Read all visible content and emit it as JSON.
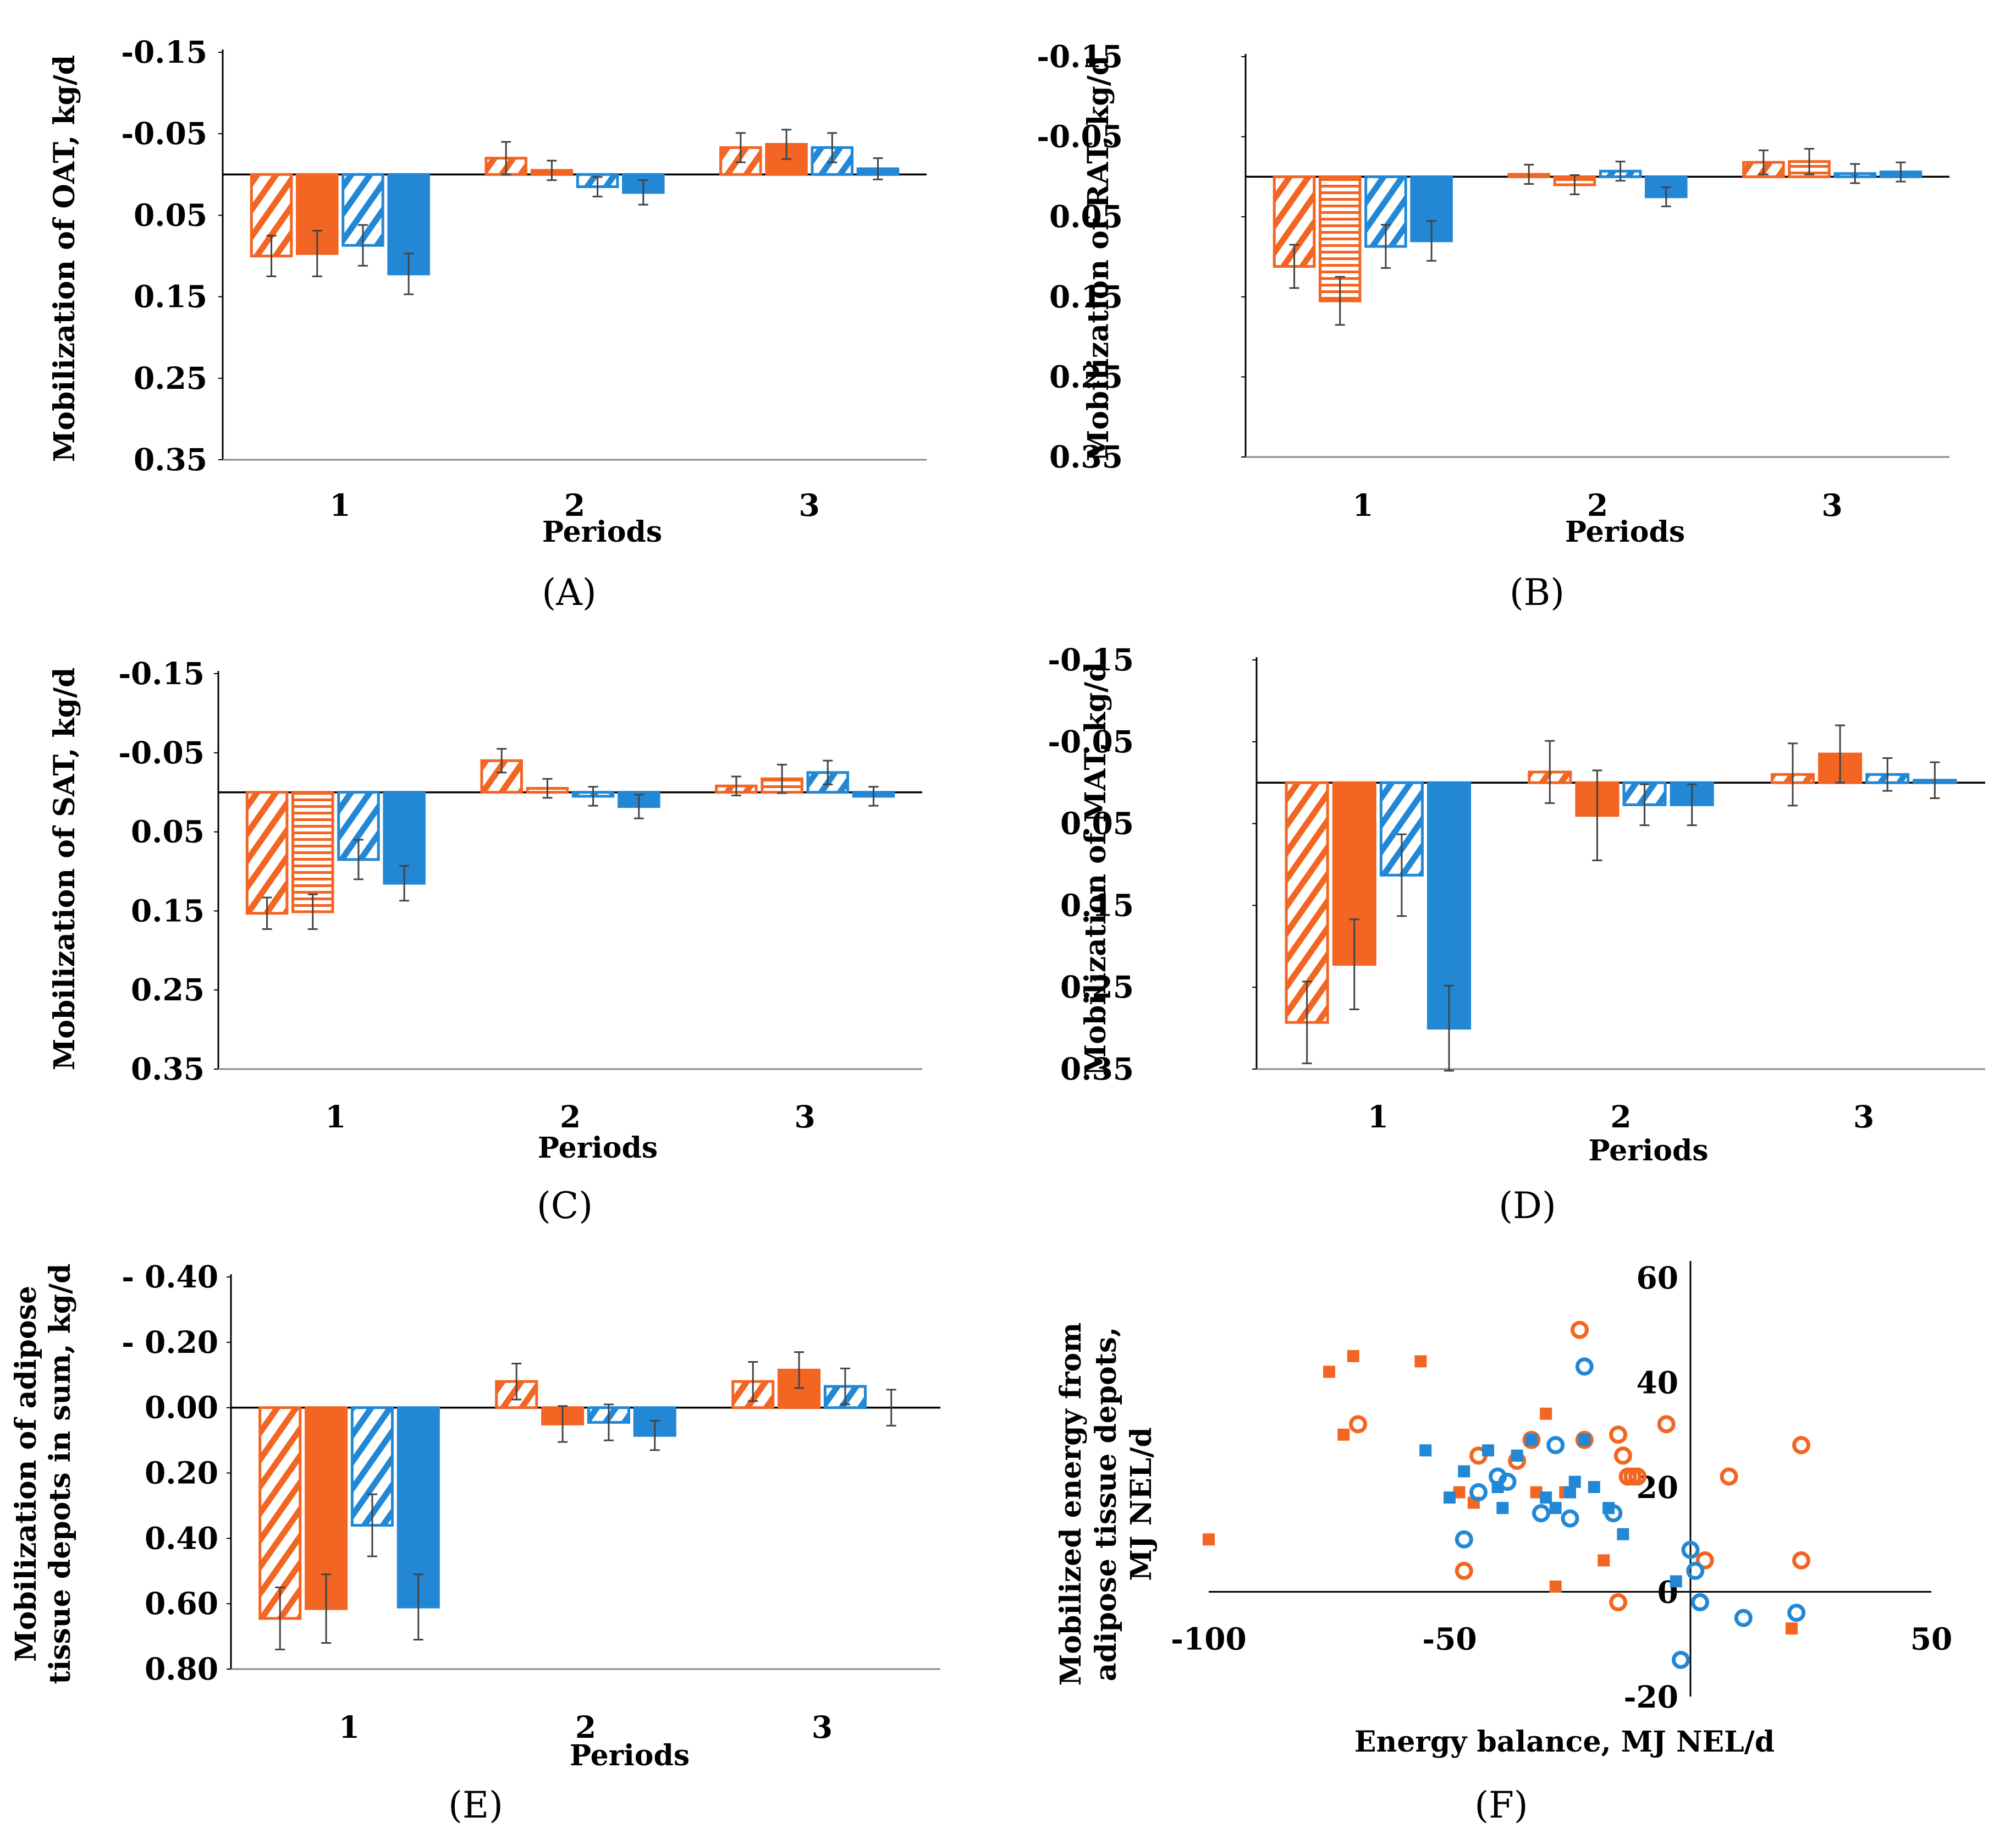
{
  "colors": {
    "orange": "#F26522",
    "blue": "#2288D6",
    "error_bar": "#444444",
    "axis": "#000000"
  },
  "series_patterns": [
    "diagonal-hatch",
    "solid",
    "diagonal-hatch",
    "solid"
  ],
  "series_colors": [
    "orange",
    "orange",
    "blue",
    "blue"
  ],
  "chart_data": [
    {
      "panel": "(A)",
      "type": "bar",
      "ylabel": "Mobilization  of OAT, kg/d",
      "xlabel": "Periods",
      "categories": [
        "1",
        "2",
        "3"
      ],
      "yaxis": {
        "inverted": true,
        "min": -0.15,
        "max": 0.35,
        "ticks": [
          "-0.15",
          "-0.05",
          "0.05",
          "0.15",
          "0.25",
          "0.35"
        ],
        "tick_values": [
          -0.15,
          -0.05,
          0.05,
          0.15,
          0.25,
          0.35
        ]
      },
      "series_patterns": [
        "diagonal-hatch",
        "solid",
        "diagonal-hatch",
        "solid"
      ],
      "series": [
        {
          "values": [
            0.1,
            -0.02,
            -0.033
          ],
          "errors": [
            0.025,
            0.02,
            0.018
          ]
        },
        {
          "values": [
            0.097,
            -0.005,
            -0.037
          ],
          "errors": [
            0.028,
            0.012,
            0.018
          ]
        },
        {
          "values": [
            0.087,
            0.015,
            -0.033
          ],
          "errors": [
            0.025,
            0.012,
            0.018
          ]
        },
        {
          "values": [
            0.122,
            0.022,
            -0.007
          ],
          "errors": [
            0.025,
            0.015,
            0.013
          ]
        }
      ]
    },
    {
      "panel": "(B)",
      "type": "bar",
      "ylabel": "Mobilization  of RAT, kg/d",
      "xlabel": "Periods",
      "categories": [
        "1",
        "2",
        "3"
      ],
      "yaxis": {
        "inverted": true,
        "min": -0.15,
        "max": 0.35,
        "ticks": [
          "-0.15",
          "-0.05",
          "0.05",
          "0.15",
          "0.25",
          "0.35"
        ],
        "tick_values": [
          -0.15,
          -0.05,
          0.05,
          0.15,
          0.25,
          0.35
        ]
      },
      "series_patterns": [
        "diagonal-hatch",
        "horizontal-hatch",
        "diagonal-hatch",
        "solid"
      ],
      "series": [
        {
          "values": [
            0.112,
            -0.003,
            -0.018
          ],
          "errors": [
            0.027,
            0.012,
            0.015
          ]
        },
        {
          "values": [
            0.155,
            0.01,
            -0.019
          ],
          "errors": [
            0.03,
            0.012,
            0.016
          ]
        },
        {
          "values": [
            0.087,
            -0.007,
            -0.004
          ],
          "errors": [
            0.027,
            0.012,
            0.012
          ]
        },
        {
          "values": [
            0.08,
            0.025,
            -0.006
          ],
          "errors": [
            0.025,
            0.012,
            0.012
          ]
        }
      ]
    },
    {
      "panel": "(C)",
      "type": "bar",
      "ylabel": "Mobilization  of SAT, kg/d",
      "xlabel": "Periods",
      "categories": [
        "1",
        "2",
        "3"
      ],
      "yaxis": {
        "inverted": true,
        "min": -0.15,
        "max": 0.35,
        "ticks": [
          "-0.15",
          "-0.05",
          "0.05",
          "0.15",
          "0.25",
          "0.35"
        ],
        "tick_values": [
          -0.15,
          -0.05,
          0.05,
          0.15,
          0.25,
          0.35
        ]
      },
      "series_patterns": [
        "diagonal-hatch",
        "horizontal-hatch",
        "diagonal-hatch",
        "solid"
      ],
      "series": [
        {
          "values": [
            0.153,
            -0.04,
            -0.008
          ],
          "errors": [
            0.02,
            0.015,
            0.012
          ]
        },
        {
          "values": [
            0.151,
            -0.005,
            -0.017
          ],
          "errors": [
            0.022,
            0.012,
            0.018
          ]
        },
        {
          "values": [
            0.085,
            0.005,
            -0.025
          ],
          "errors": [
            0.025,
            0.012,
            0.015
          ]
        },
        {
          "values": [
            0.115,
            0.018,
            0.005
          ],
          "errors": [
            0.022,
            0.015,
            0.012
          ]
        }
      ]
    },
    {
      "panel": "(D)",
      "type": "bar",
      "ylabel": "Mobilization  of MAT, kg/d",
      "xlabel": "Periods",
      "categories": [
        "1",
        "2",
        "3"
      ],
      "yaxis": {
        "inverted": true,
        "min": -0.15,
        "max": 0.35,
        "ticks": [
          "-0.15",
          "-0.05",
          "0.05",
          "0.15",
          "0.25",
          "0.35"
        ],
        "tick_values": [
          -0.15,
          -0.05,
          0.05,
          0.15,
          0.25,
          0.35
        ]
      },
      "series_patterns": [
        "diagonal-hatch",
        "solid",
        "diagonal-hatch",
        "solid"
      ],
      "series": [
        {
          "values": [
            0.293,
            -0.013,
            -0.01
          ],
          "errors": [
            0.05,
            0.038,
            0.038
          ]
        },
        {
          "values": [
            0.222,
            0.04,
            -0.035
          ],
          "errors": [
            0.055,
            0.055,
            0.035
          ]
        },
        {
          "values": [
            0.113,
            0.027,
            -0.01
          ],
          "errors": [
            0.05,
            0.025,
            0.02
          ]
        },
        {
          "values": [
            0.3,
            0.027,
            -0.003
          ],
          "errors": [
            0.052,
            0.025,
            0.022
          ]
        }
      ]
    },
    {
      "panel": "(E)",
      "type": "bar",
      "ylabel": "Mobilization of adipose tissue depots in sum, kg/d",
      "xlabel": "Periods",
      "categories": [
        "1",
        "2",
        "3"
      ],
      "yaxis": {
        "inverted": true,
        "min": -0.4,
        "max": 0.8,
        "ticks": [
          "- 0.40",
          "- 0.20",
          "0.00",
          "0.20",
          "0.40",
          "0.60",
          "0.80"
        ],
        "tick_values": [
          -0.4,
          -0.2,
          0.0,
          0.2,
          0.4,
          0.6,
          0.8
        ]
      },
      "series_patterns": [
        "diagonal-hatch",
        "solid",
        "diagonal-hatch",
        "solid"
      ],
      "series": [
        {
          "values": [
            0.645,
            -0.08,
            -0.08
          ],
          "errors": [
            0.095,
            0.055,
            0.06
          ]
        },
        {
          "values": [
            0.615,
            0.05,
            -0.115
          ],
          "errors": [
            0.105,
            0.055,
            0.055
          ]
        },
        {
          "values": [
            0.36,
            0.045,
            -0.065
          ],
          "errors": [
            0.095,
            0.055,
            0.055
          ]
        },
        {
          "values": [
            0.61,
            0.085,
            0.0
          ],
          "errors": [
            0.1,
            0.045,
            0.055
          ]
        }
      ]
    },
    {
      "panel": "(F)",
      "type": "scatter",
      "xlabel": "Energy balance, MJ NEL/d",
      "ylabel": "Mobilized  energy from adipose tissue depots, MJ NEL/d",
      "xlim": [
        -100,
        50
      ],
      "ylim": [
        -20,
        60
      ],
      "xticks": [
        "-100",
        "-50",
        "0",
        "50"
      ],
      "xtick_values": [
        -100,
        -50,
        0,
        50
      ],
      "yticks": [
        "60",
        "40",
        "20",
        "0",
        "-20"
      ],
      "ytick_values": [
        60,
        40,
        20,
        0,
        -20
      ],
      "series": [
        {
          "name": "orange-square",
          "color": "orange",
          "marker": "square",
          "points": [
            [
              -100,
              10
            ],
            [
              -75,
              42
            ],
            [
              -72,
              30
            ],
            [
              -70,
              45
            ],
            [
              -56,
              44
            ],
            [
              -48,
              19
            ],
            [
              -45,
              17
            ],
            [
              -32,
              19
            ],
            [
              -30,
              34
            ],
            [
              -28,
              1
            ],
            [
              -26,
              19
            ],
            [
              -18,
              6
            ],
            [
              21,
              -7
            ]
          ]
        },
        {
          "name": "orange-circle",
          "color": "orange",
          "marker": "circle",
          "points": [
            [
              -69,
              32
            ],
            [
              -47,
              4
            ],
            [
              -44,
              26
            ],
            [
              -36,
              25
            ],
            [
              -33,
              29
            ],
            [
              -23,
              50
            ],
            [
              -22,
              29
            ],
            [
              -15,
              30
            ],
            [
              -14,
              26
            ],
            [
              -13,
              22
            ],
            [
              -15,
              -2
            ],
            [
              -12,
              22
            ],
            [
              -11,
              22
            ],
            [
              -5,
              32
            ],
            [
              3,
              6
            ],
            [
              8,
              22
            ],
            [
              23,
              28
            ],
            [
              23,
              6
            ]
          ]
        },
        {
          "name": "blue-square",
          "color": "blue",
          "marker": "square",
          "points": [
            [
              -55,
              27
            ],
            [
              -50,
              18
            ],
            [
              -47,
              23
            ],
            [
              -42,
              27
            ],
            [
              -40,
              20
            ],
            [
              -39,
              16
            ],
            [
              -36,
              26
            ],
            [
              -33,
              29
            ],
            [
              -30,
              18
            ],
            [
              -28,
              16
            ],
            [
              -25,
              19
            ],
            [
              -24,
              21
            ],
            [
              -22,
              29
            ],
            [
              -20,
              20
            ],
            [
              -17,
              16
            ],
            [
              -14,
              11
            ],
            [
              -3,
              2
            ]
          ]
        },
        {
          "name": "blue-circle",
          "color": "blue",
          "marker": "circle",
          "points": [
            [
              -47,
              10
            ],
            [
              -44,
              19
            ],
            [
              -40,
              22
            ],
            [
              -38,
              21
            ],
            [
              -31,
              15
            ],
            [
              -28,
              28
            ],
            [
              -25,
              14
            ],
            [
              -22,
              43
            ],
            [
              -16,
              15
            ],
            [
              -2,
              -13
            ],
            [
              0,
              8
            ],
            [
              1,
              4
            ],
            [
              2,
              -2
            ],
            [
              11,
              -5
            ],
            [
              22,
              -4
            ]
          ]
        }
      ]
    }
  ]
}
